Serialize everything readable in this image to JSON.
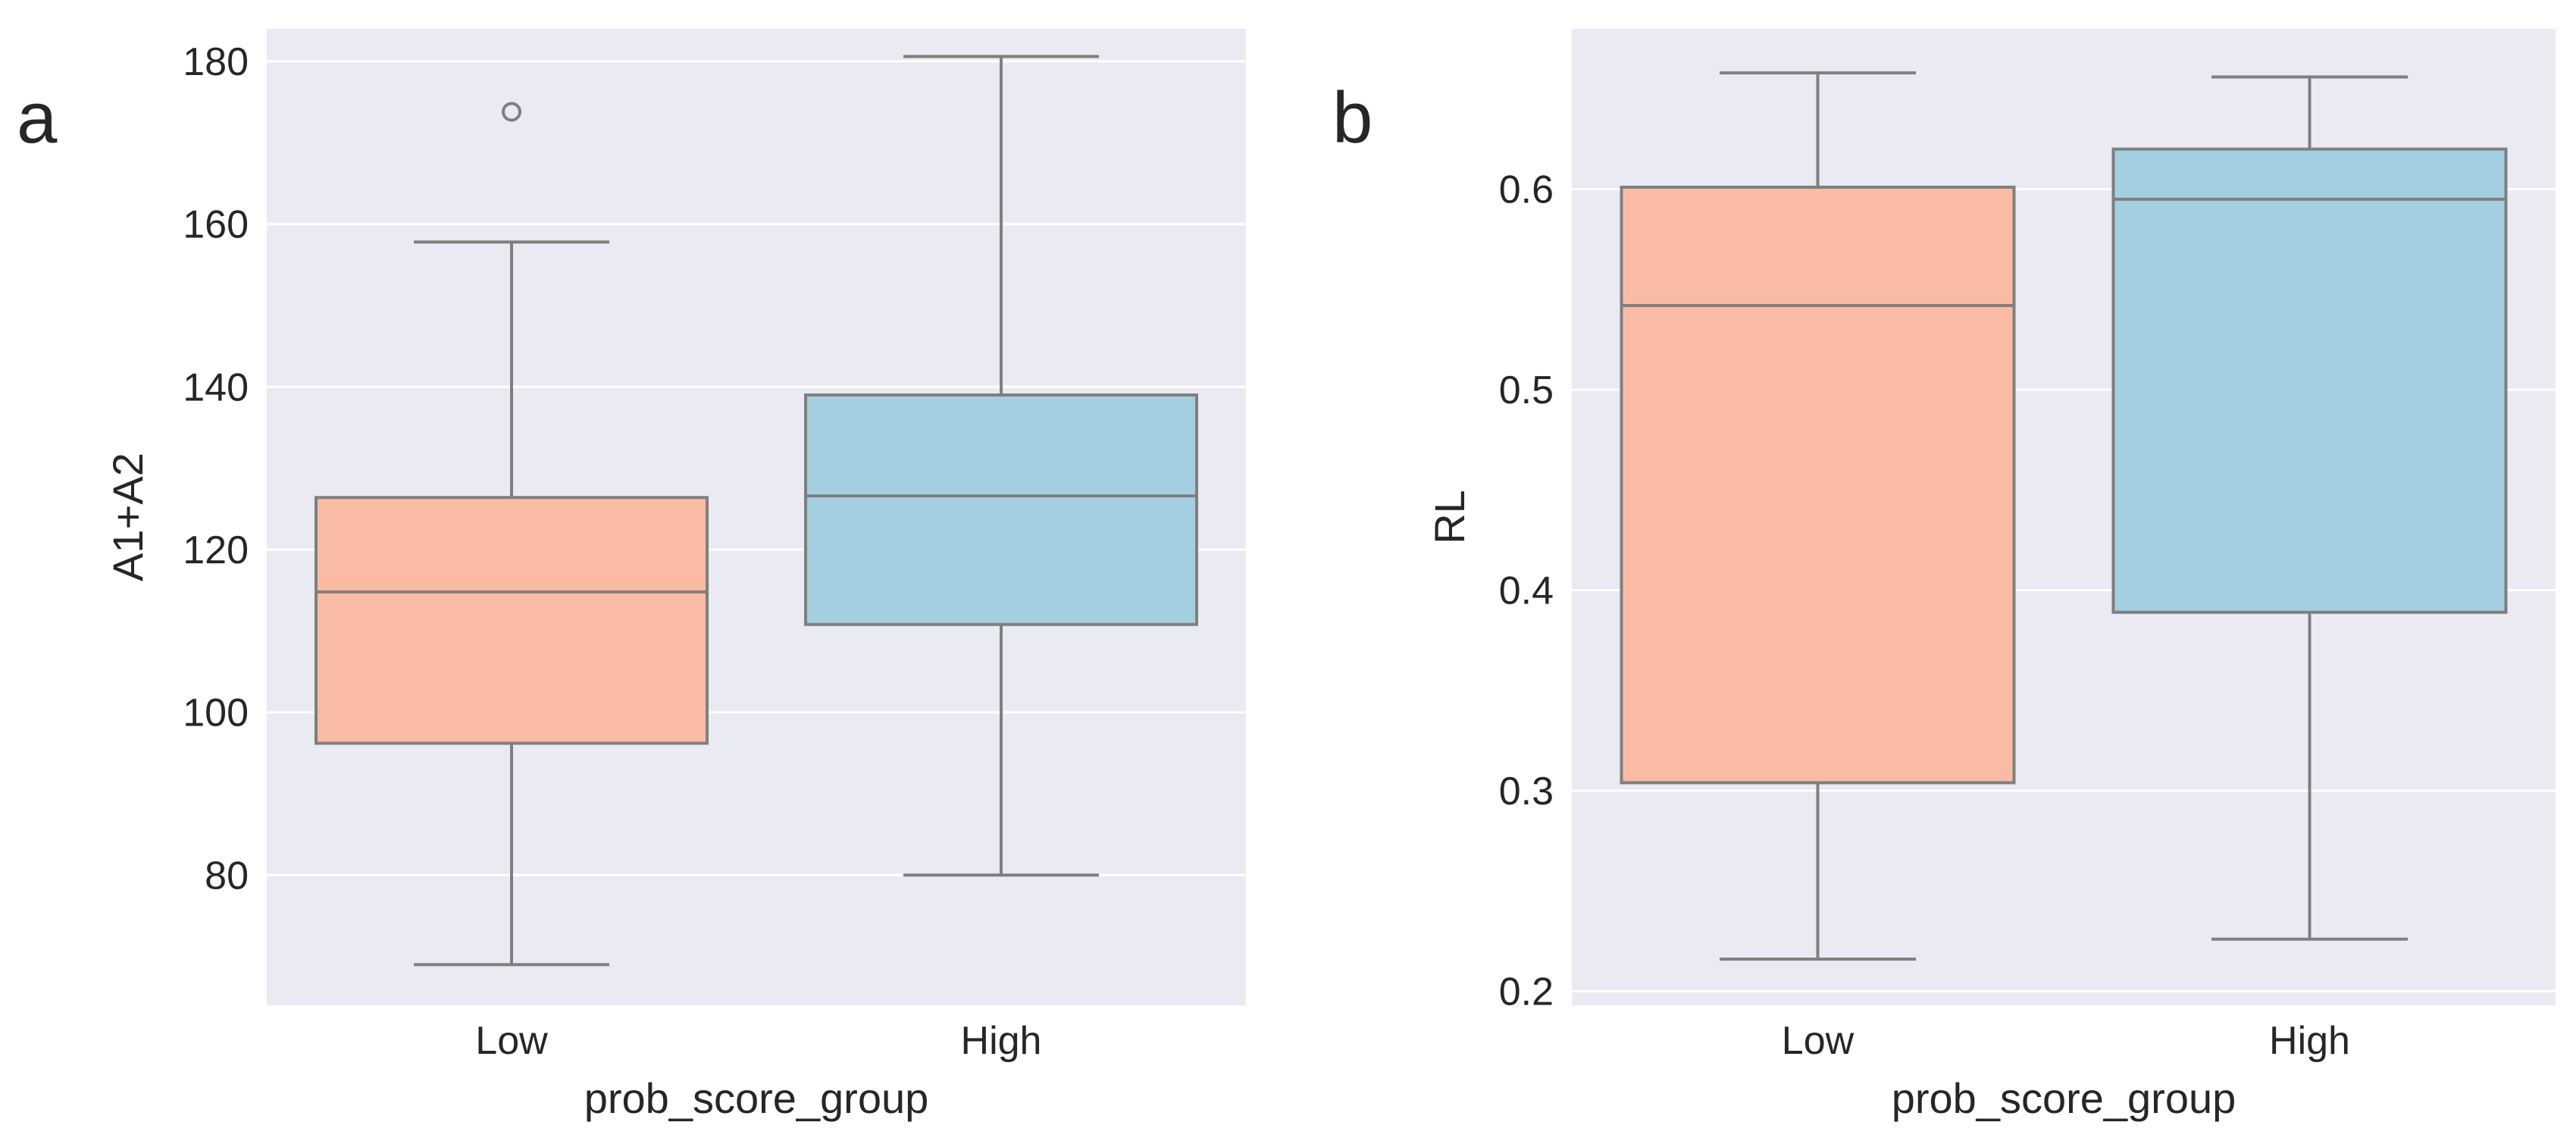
{
  "figure": {
    "panels": [
      "a",
      "b"
    ]
  },
  "colors": {
    "background": "#eaeaf2",
    "grid": "#ffffff",
    "line": "#7f7f7f",
    "low_fill": "#fabba5",
    "high_fill": "#a4cfe0",
    "text": "#262626"
  },
  "chart_data": [
    {
      "panel": "a",
      "type": "box",
      "xlabel": "prob_score_group",
      "ylabel": "A1+A2",
      "categories": [
        "Low",
        "High"
      ],
      "ylim": [
        64,
        184
      ],
      "yticks": [
        80,
        100,
        120,
        140,
        160,
        180
      ],
      "ytick_labels": [
        "80",
        "100",
        "120",
        "140",
        "160",
        "180"
      ],
      "boxes": [
        {
          "name": "Low",
          "whisker_low": 69,
          "q1": 96.2,
          "median": 114.8,
          "q3": 126.4,
          "whisker_high": 157.8,
          "outliers": [
            173.8
          ]
        },
        {
          "name": "High",
          "whisker_low": 80,
          "q1": 110.8,
          "median": 126.6,
          "q3": 139,
          "whisker_high": 180.6,
          "outliers": []
        }
      ]
    },
    {
      "panel": "b",
      "type": "box",
      "xlabel": "prob_score_group",
      "ylabel": "RL",
      "categories": [
        "Low",
        "High"
      ],
      "ylim": [
        0.193,
        0.68
      ],
      "yticks": [
        0.2,
        0.3,
        0.4,
        0.5,
        0.6
      ],
      "ytick_labels": [
        "0.2",
        "0.3",
        "0.4",
        "0.5",
        "0.6"
      ],
      "boxes": [
        {
          "name": "Low",
          "whisker_low": 0.216,
          "q1": 0.304,
          "median": 0.542,
          "q3": 0.601,
          "whisker_high": 0.658,
          "outliers": []
        },
        {
          "name": "High",
          "whisker_low": 0.226,
          "q1": 0.389,
          "median": 0.595,
          "q3": 0.62,
          "whisker_high": 0.656,
          "outliers": []
        }
      ]
    }
  ]
}
